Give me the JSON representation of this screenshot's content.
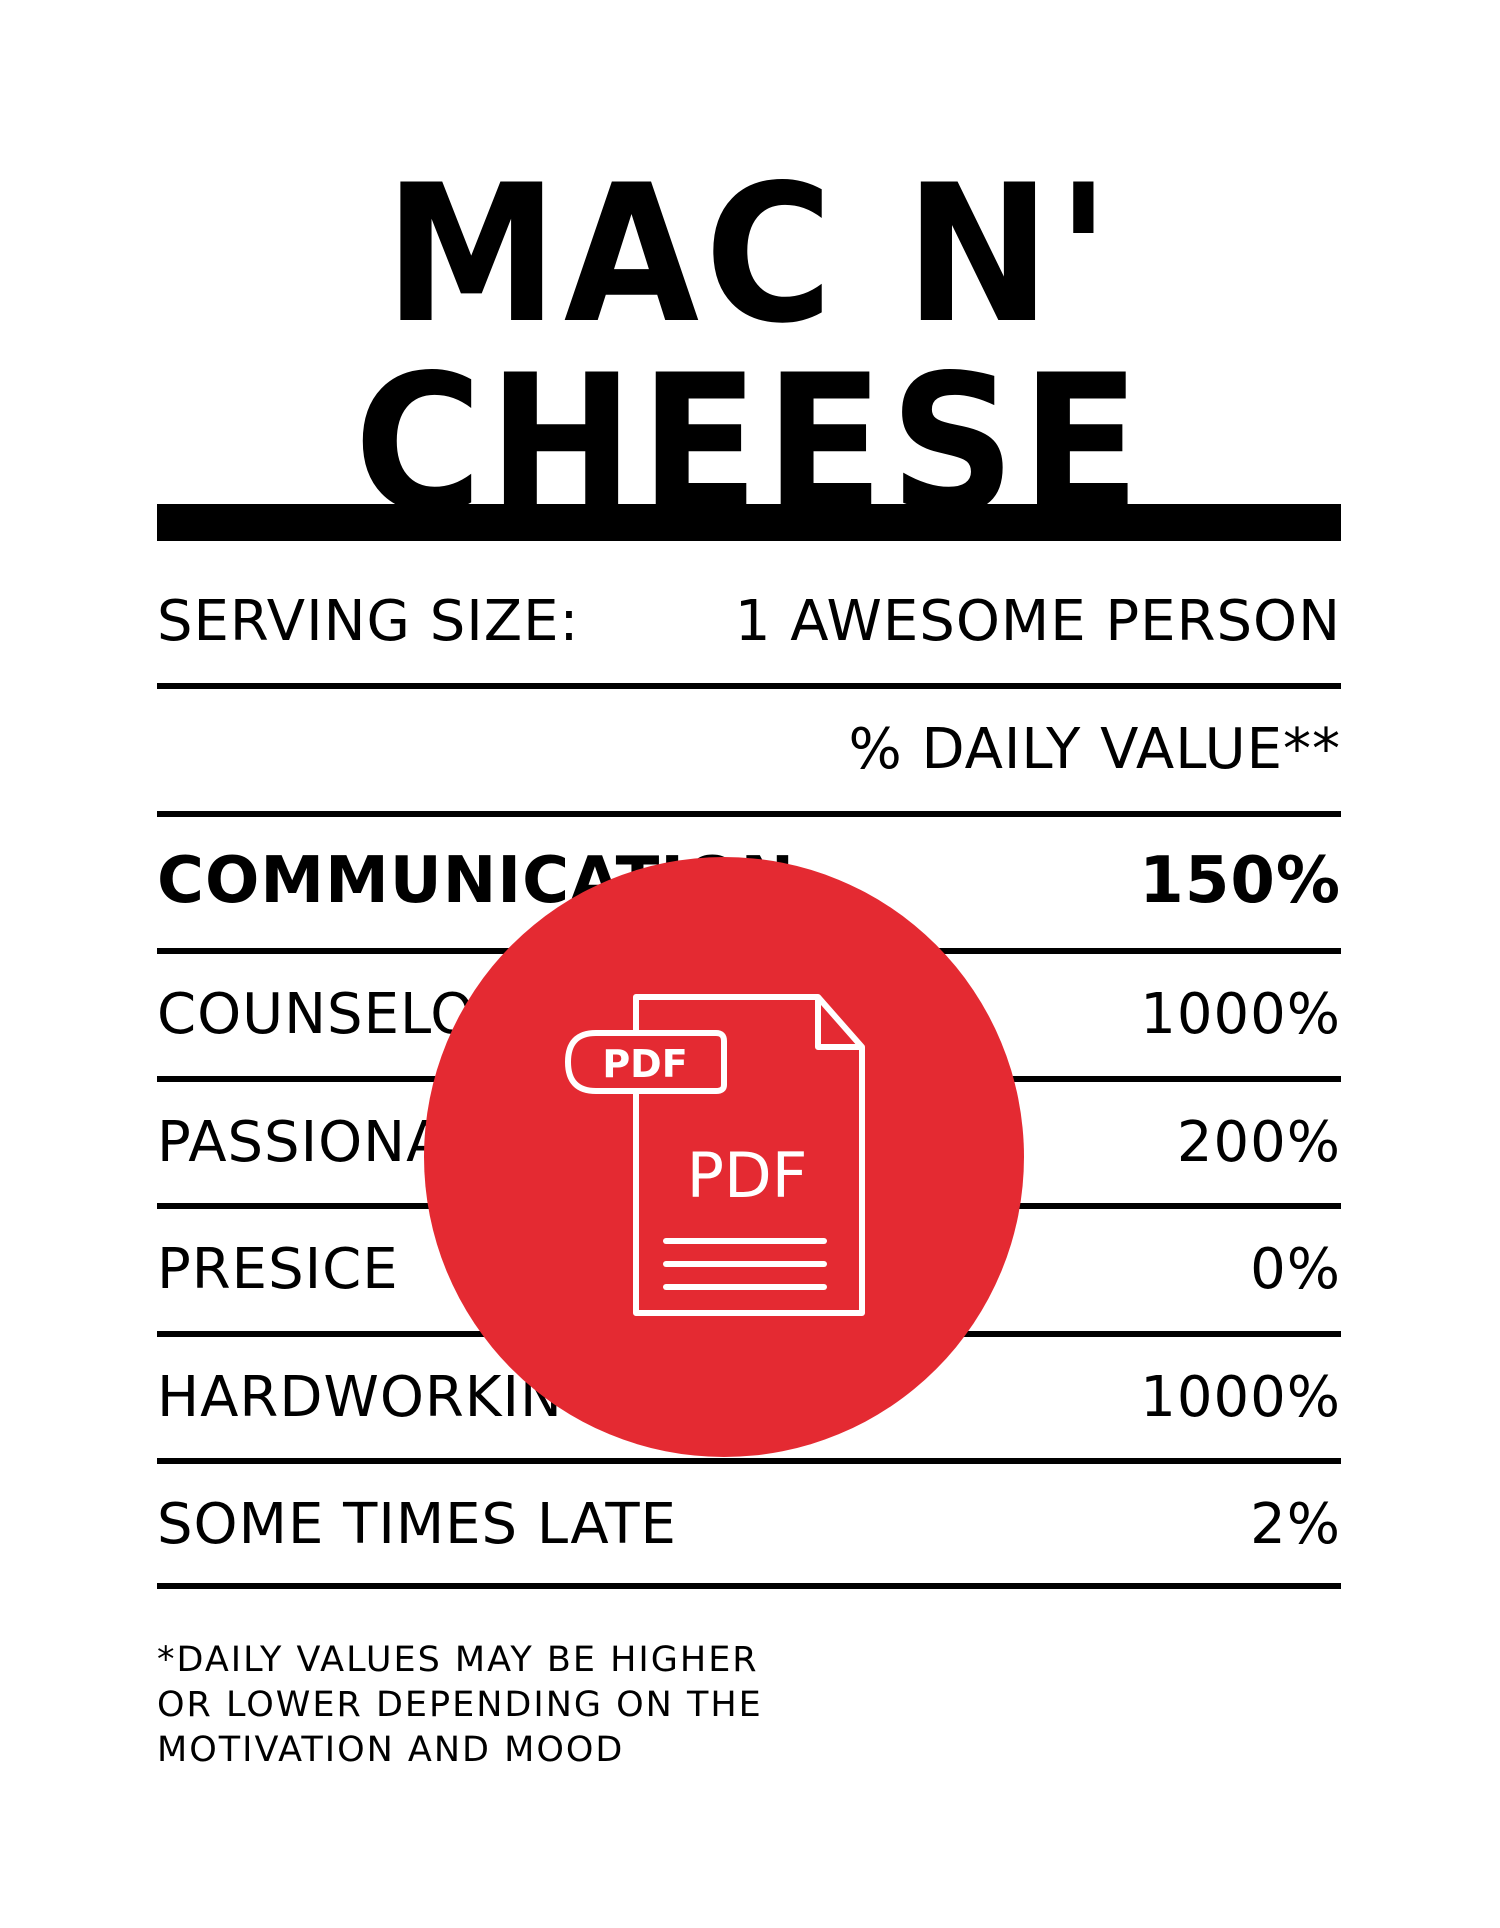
{
  "title": "MAC N' CHEESE",
  "serving": {
    "label": "SERVING SIZE:",
    "value": "1 AWESOME PERSON"
  },
  "daily_value_header": "% DAILY VALUE**",
  "rows": [
    {
      "label": "COMMUNICATION",
      "value": "150%",
      "bold": true
    },
    {
      "label": "COUNSELOR",
      "value": "1000%"
    },
    {
      "label": "PASSIONATE",
      "value": "200%"
    },
    {
      "label": "PRESICE",
      "value": "0%"
    },
    {
      "label": "HARDWORKING",
      "value": "1000%"
    },
    {
      "label": "SOME TIMES LATE",
      "value": "2%"
    }
  ],
  "footnote": [
    "*DAILY VALUES MAY BE HIGHER",
    "OR LOWER DEPENDING ON THE",
    "MOTIVATION AND MOOD"
  ],
  "overlay": {
    "icon": "pdf-file-icon",
    "tag_label": "PDF",
    "doc_label": "PDF",
    "color": "#e42a32"
  }
}
